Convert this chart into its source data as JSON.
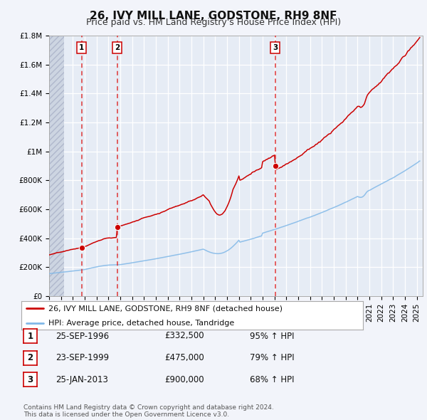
{
  "title": "26, IVY MILL LANE, GODSTONE, RH9 8NF",
  "subtitle": "Price paid vs. HM Land Registry's House Price Index (HPI)",
  "ylim": [
    0,
    1800000
  ],
  "yticks": [
    0,
    200000,
    400000,
    600000,
    800000,
    1000000,
    1200000,
    1400000,
    1600000,
    1800000
  ],
  "ytick_labels": [
    "£0",
    "£200K",
    "£400K",
    "£600K",
    "£800K",
    "£1M",
    "£1.2M",
    "£1.4M",
    "£1.6M",
    "£1.8M"
  ],
  "xlim_start": 1994.0,
  "xlim_end": 2025.5,
  "background_color": "#f2f4fa",
  "plot_bg_color": "#e6ecf5",
  "grid_color": "#ffffff",
  "red_line_color": "#cc0000",
  "blue_line_color": "#80b8e8",
  "vline_color": "#dd2222",
  "sale_dates": [
    1996.73,
    1999.73,
    2013.07
  ],
  "sale_prices": [
    332500,
    475000,
    900000
  ],
  "sale_labels": [
    "1",
    "2",
    "3"
  ],
  "legend_red_label": "26, IVY MILL LANE, GODSTONE, RH9 8NF (detached house)",
  "legend_blue_label": "HPI: Average price, detached house, Tandridge",
  "table_rows": [
    [
      "1",
      "25-SEP-1996",
      "£332,500",
      "95% ↑ HPI"
    ],
    [
      "2",
      "23-SEP-1999",
      "£475,000",
      "79% ↑ HPI"
    ],
    [
      "3",
      "25-JAN-2013",
      "£900,000",
      "68% ↑ HPI"
    ]
  ],
  "footer_text": "Contains HM Land Registry data © Crown copyright and database right 2024.\nThis data is licensed under the Open Government Licence v3.0.",
  "title_fontsize": 11,
  "subtitle_fontsize": 9,
  "tick_fontsize": 7.5,
  "legend_fontsize": 8,
  "table_fontsize": 8.5,
  "footer_fontsize": 6.5
}
